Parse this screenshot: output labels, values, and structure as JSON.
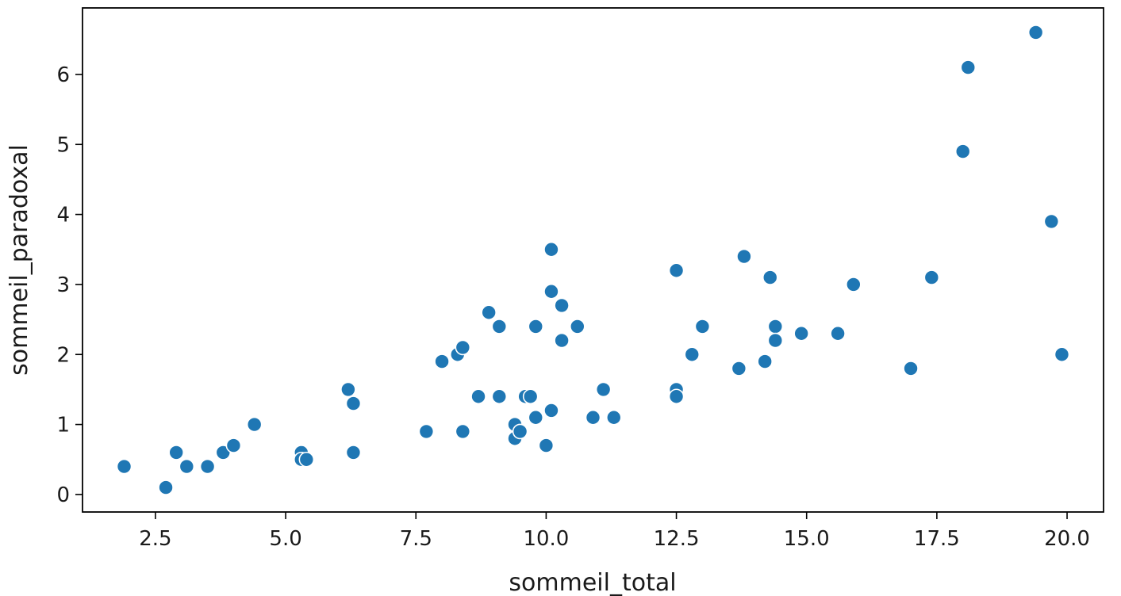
{
  "chart_data": {
    "type": "scatter",
    "title": "",
    "xlabel": "sommeil_total",
    "ylabel": "sommeil_paradoxal",
    "xlim": [
      1.1,
      20.7
    ],
    "ylim": [
      -0.25,
      6.95
    ],
    "xticks": [
      2.5,
      5.0,
      7.5,
      10.0,
      12.5,
      15.0,
      17.5,
      20.0
    ],
    "xtick_labels": [
      "2.5",
      "5.0",
      "7.5",
      "10.0",
      "12.5",
      "15.0",
      "17.5",
      "20.0"
    ],
    "yticks": [
      0,
      1,
      2,
      3,
      4,
      5,
      6
    ],
    "ytick_labels": [
      "0",
      "1",
      "2",
      "3",
      "4",
      "5",
      "6"
    ],
    "grid": false,
    "marker_color": "#1f77b4",
    "marker_edge_color": "#ffffff",
    "points": [
      {
        "x": 1.9,
        "y": 0.4
      },
      {
        "x": 2.7,
        "y": 0.1
      },
      {
        "x": 2.9,
        "y": 0.6
      },
      {
        "x": 3.1,
        "y": 0.4
      },
      {
        "x": 3.5,
        "y": 0.4
      },
      {
        "x": 3.8,
        "y": 0.6
      },
      {
        "x": 4.0,
        "y": 0.7
      },
      {
        "x": 4.4,
        "y": 1.0
      },
      {
        "x": 5.3,
        "y": 0.6
      },
      {
        "x": 5.3,
        "y": 0.5
      },
      {
        "x": 5.4,
        "y": 0.5
      },
      {
        "x": 6.2,
        "y": 1.5
      },
      {
        "x": 6.3,
        "y": 1.3
      },
      {
        "x": 6.3,
        "y": 0.6
      },
      {
        "x": 7.7,
        "y": 0.9
      },
      {
        "x": 8.0,
        "y": 1.9
      },
      {
        "x": 8.3,
        "y": 2.0
      },
      {
        "x": 8.4,
        "y": 2.1
      },
      {
        "x": 8.4,
        "y": 0.9
      },
      {
        "x": 8.7,
        "y": 1.4
      },
      {
        "x": 8.9,
        "y": 2.6
      },
      {
        "x": 9.1,
        "y": 2.4
      },
      {
        "x": 9.1,
        "y": 1.4
      },
      {
        "x": 9.4,
        "y": 1.0
      },
      {
        "x": 9.4,
        "y": 0.8
      },
      {
        "x": 9.5,
        "y": 0.9
      },
      {
        "x": 9.6,
        "y": 1.4
      },
      {
        "x": 9.7,
        "y": 1.4
      },
      {
        "x": 9.8,
        "y": 2.4
      },
      {
        "x": 9.8,
        "y": 1.1
      },
      {
        "x": 10.0,
        "y": 0.7
      },
      {
        "x": 10.1,
        "y": 3.5
      },
      {
        "x": 10.1,
        "y": 2.9
      },
      {
        "x": 10.1,
        "y": 1.2
      },
      {
        "x": 10.3,
        "y": 2.7
      },
      {
        "x": 10.3,
        "y": 2.2
      },
      {
        "x": 10.6,
        "y": 2.4
      },
      {
        "x": 10.9,
        "y": 1.1
      },
      {
        "x": 11.1,
        "y": 1.5
      },
      {
        "x": 11.3,
        "y": 1.1
      },
      {
        "x": 12.5,
        "y": 3.2
      },
      {
        "x": 12.5,
        "y": 1.5
      },
      {
        "x": 12.5,
        "y": 1.4
      },
      {
        "x": 12.8,
        "y": 2.0
      },
      {
        "x": 13.0,
        "y": 2.4
      },
      {
        "x": 13.7,
        "y": 1.8
      },
      {
        "x": 13.8,
        "y": 3.4
      },
      {
        "x": 14.2,
        "y": 1.9
      },
      {
        "x": 14.3,
        "y": 3.1
      },
      {
        "x": 14.4,
        "y": 2.4
      },
      {
        "x": 14.4,
        "y": 2.2
      },
      {
        "x": 14.9,
        "y": 2.3
      },
      {
        "x": 15.6,
        "y": 2.3
      },
      {
        "x": 15.9,
        "y": 3.0
      },
      {
        "x": 17.0,
        "y": 1.8
      },
      {
        "x": 17.4,
        "y": 3.1
      },
      {
        "x": 18.0,
        "y": 4.9
      },
      {
        "x": 18.1,
        "y": 6.1
      },
      {
        "x": 19.4,
        "y": 6.6
      },
      {
        "x": 19.7,
        "y": 3.9
      },
      {
        "x": 19.9,
        "y": 2.0
      }
    ]
  }
}
